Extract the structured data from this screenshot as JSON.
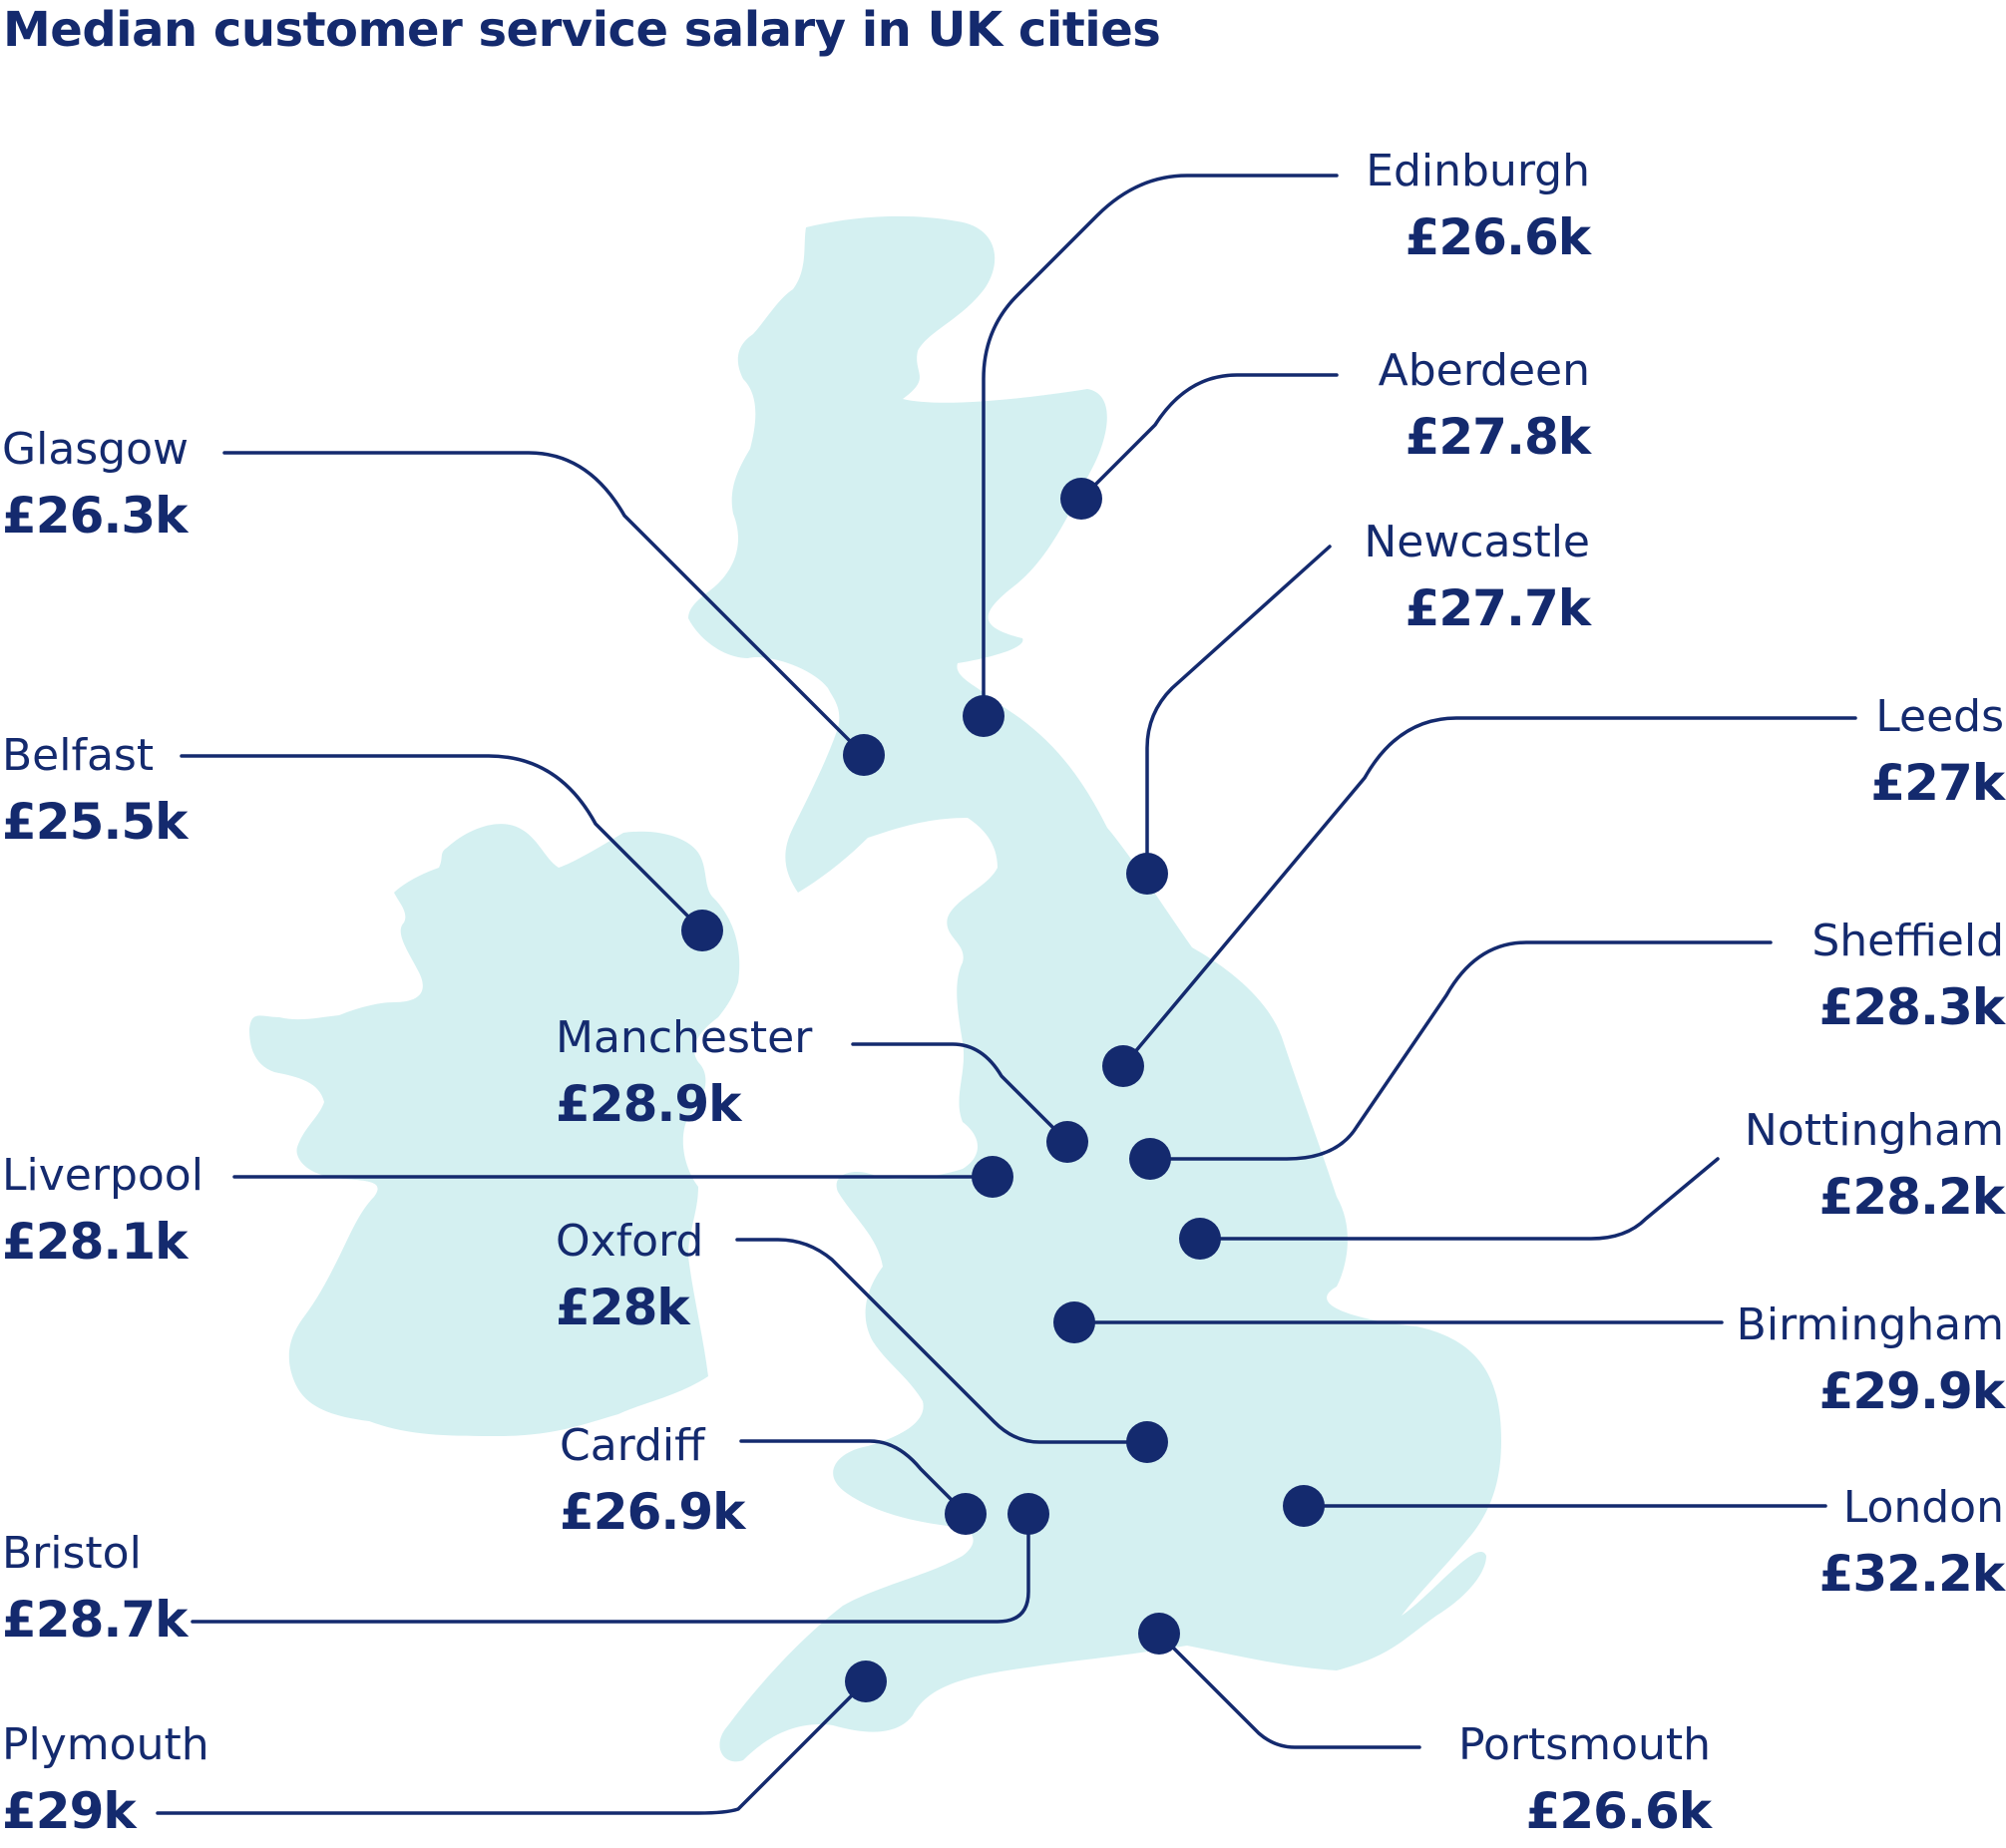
{
  "title": "Median customer service salary in UK cities",
  "colors": {
    "text": "#142a6e",
    "land": "#d4f0f1",
    "marker": "#142a6e",
    "background": "#ffffff"
  },
  "cities": [
    {
      "id": "edinburgh",
      "name": "Edinburgh",
      "salary": "£26.6k"
    },
    {
      "id": "aberdeen",
      "name": "Aberdeen",
      "salary": "£27.8k"
    },
    {
      "id": "glasgow",
      "name": "Glasgow",
      "salary": "£26.3k"
    },
    {
      "id": "newcastle",
      "name": "Newcastle",
      "salary": "£27.7k"
    },
    {
      "id": "belfast",
      "name": "Belfast",
      "salary": "£25.5k"
    },
    {
      "id": "leeds",
      "name": "Leeds",
      "salary": "£27k"
    },
    {
      "id": "sheffield",
      "name": "Sheffield",
      "salary": "£28.3k"
    },
    {
      "id": "manchester",
      "name": "Manchester",
      "salary": "£28.9k"
    },
    {
      "id": "nottingham",
      "name": "Nottingham",
      "salary": "£28.2k"
    },
    {
      "id": "liverpool",
      "name": "Liverpool",
      "salary": "£28.1k"
    },
    {
      "id": "oxford",
      "name": "Oxford",
      "salary": "£28k"
    },
    {
      "id": "birmingham",
      "name": "Birmingham",
      "salary": "£29.9k"
    },
    {
      "id": "cardiff",
      "name": "Cardiff",
      "salary": "£26.9k"
    },
    {
      "id": "london",
      "name": "London",
      "salary": "£32.2k"
    },
    {
      "id": "bristol",
      "name": "Bristol",
      "salary": "£28.7k"
    },
    {
      "id": "plymouth",
      "name": "Plymouth",
      "salary": "£29k"
    },
    {
      "id": "portsmouth",
      "name": "Portsmouth",
      "salary": "£26.6k"
    }
  ]
}
